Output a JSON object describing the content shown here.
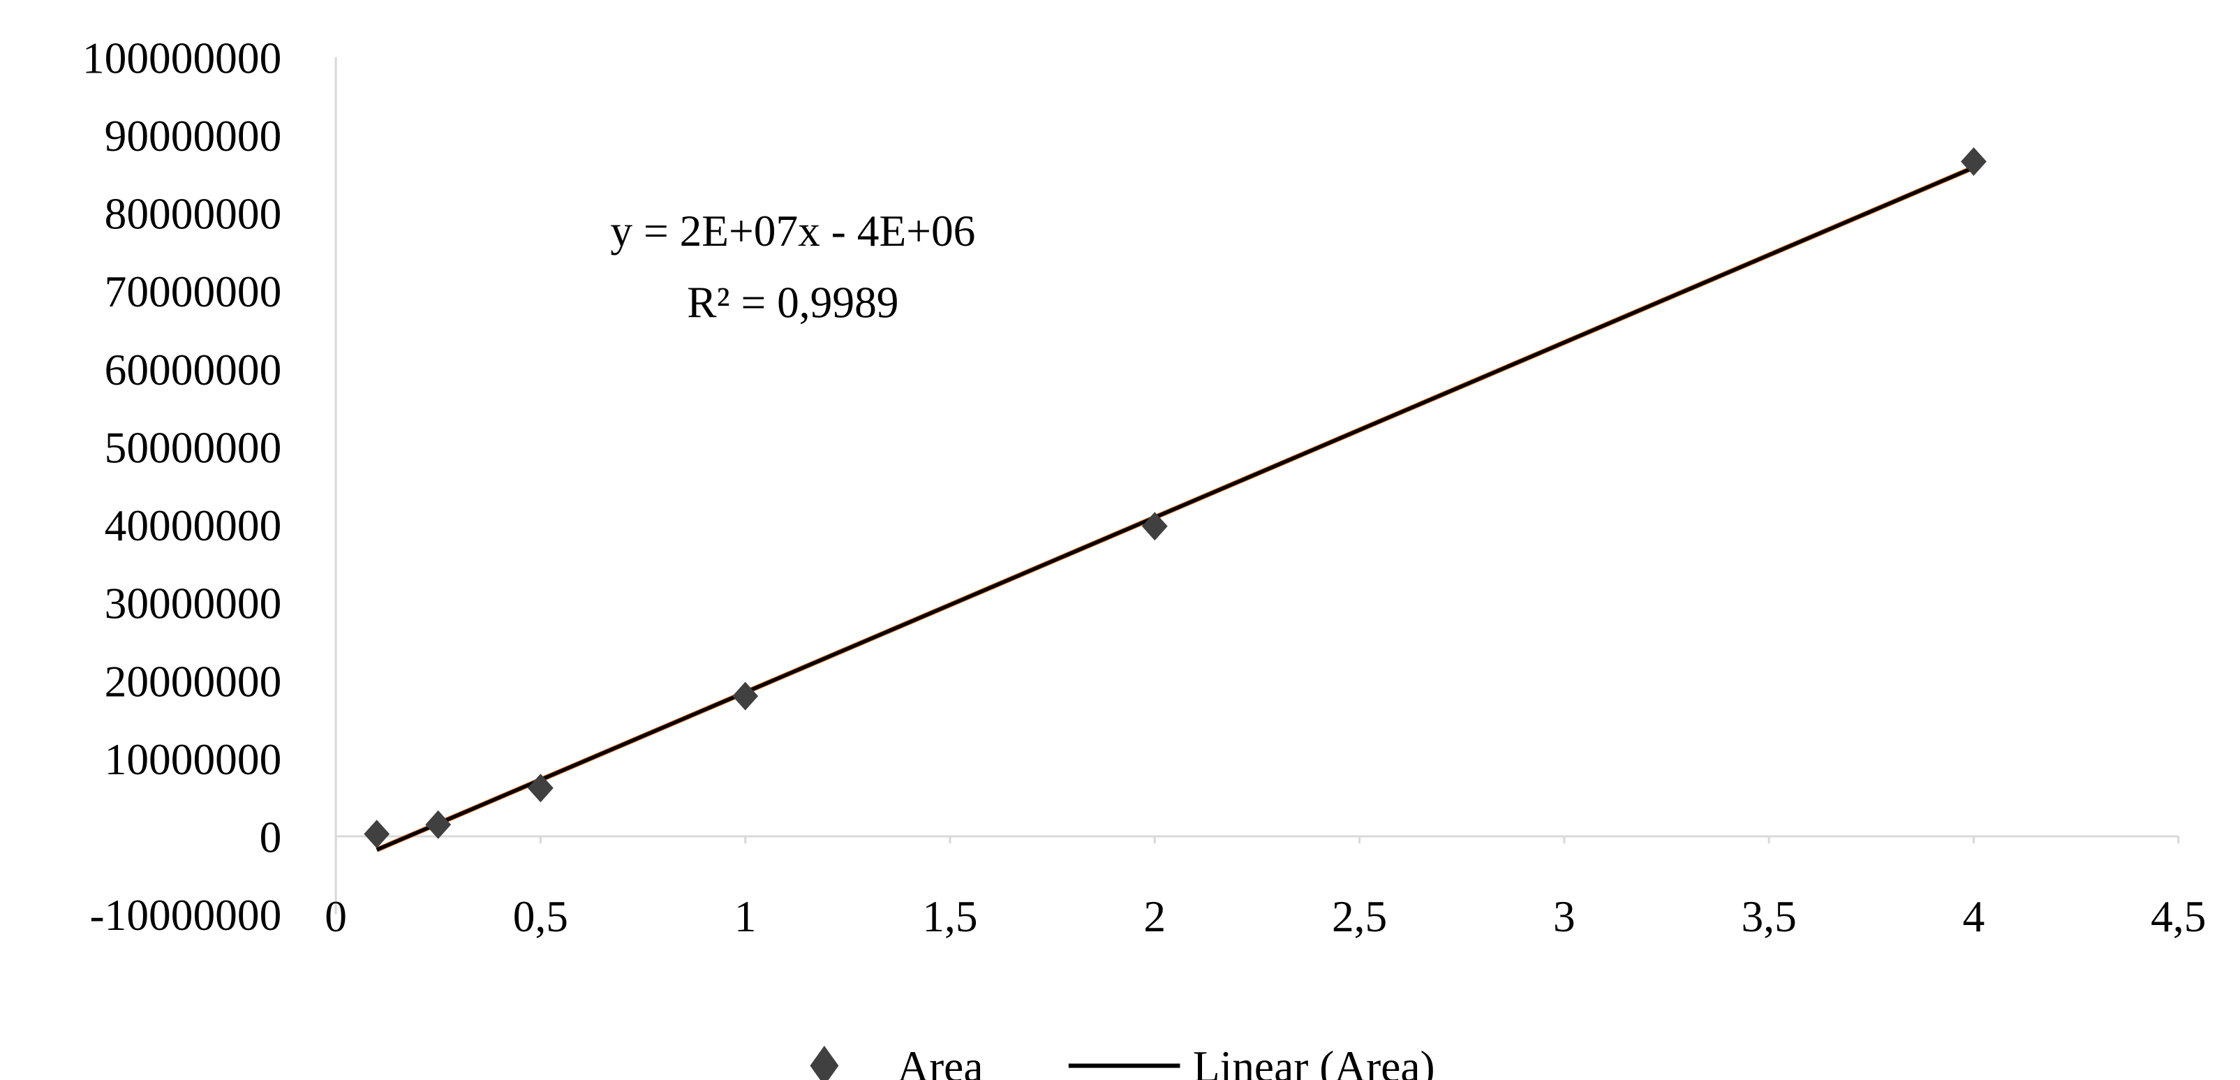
{
  "chart_data": {
    "type": "scatter",
    "title": "",
    "xlabel": "",
    "ylabel": "",
    "xlim": [
      0,
      4.5
    ],
    "ylim": [
      -10000000,
      100000000
    ],
    "x_ticks": [
      "0",
      "0,5",
      "1",
      "1,5",
      "2",
      "2,5",
      "3",
      "3,5",
      "4",
      "4,5"
    ],
    "x_tick_values": [
      0,
      0.5,
      1,
      1.5,
      2,
      2.5,
      3,
      3.5,
      4,
      4.5
    ],
    "y_ticks": [
      "-10000000",
      "0",
      "10000000",
      "20000000",
      "30000000",
      "40000000",
      "50000000",
      "60000000",
      "70000000",
      "80000000",
      "90000000",
      "100000000"
    ],
    "y_tick_values": [
      -10000000,
      0,
      10000000,
      20000000,
      30000000,
      40000000,
      50000000,
      60000000,
      70000000,
      80000000,
      90000000,
      100000000
    ],
    "grid": false,
    "legend_position": "bottom",
    "series": [
      {
        "name": "Area",
        "marker": "diamond",
        "color": "#404040",
        "x": [
          0.1,
          0.25,
          0.5,
          1,
          2,
          4
        ],
        "y": [
          300000,
          1500000,
          6200000,
          18000000,
          39800000,
          86600000
        ]
      }
    ],
    "trendline": {
      "name": "Linear (Area)",
      "color": "#000000",
      "slope": 22450000,
      "intercept": -3970000,
      "x_range": [
        0.1,
        4
      ],
      "equation": "y = 2E+07x - 4E+06",
      "r_squared": "R² = 0,9989"
    }
  }
}
